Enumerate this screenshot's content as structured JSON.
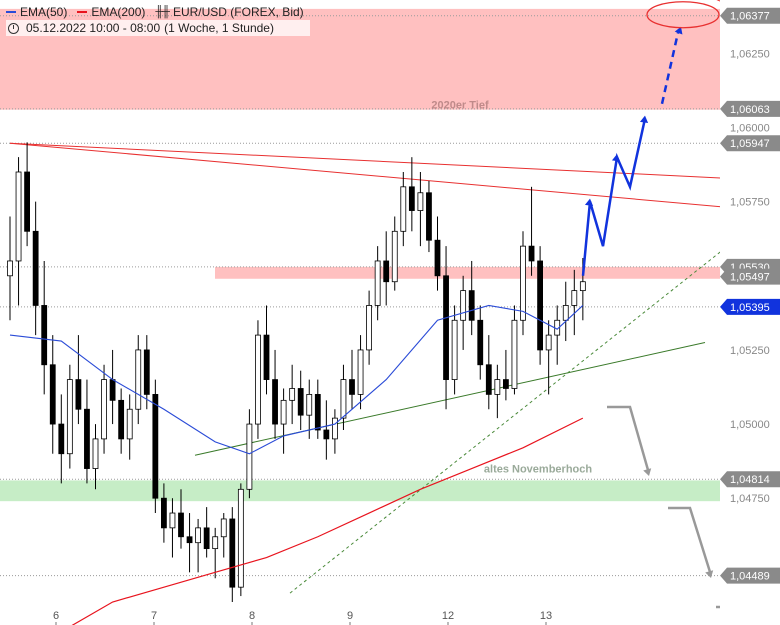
{
  "legend": {
    "ema50_label": "EMA(50)",
    "ema200_label": "EMA(200)",
    "instrument": "EUR/USD (FOREX, Bid)",
    "timerange": "05.12.2022 10:00 - 08:00",
    "period": "(1 Woche, 1 Stunde)"
  },
  "colors": {
    "ema50": "#2a4bd7",
    "ema200": "#e8141e",
    "resistance_zone": "#ffc0c0",
    "support_zone": "#c6edc6",
    "arrow_blue": "#1133dd",
    "arrow_gray": "#999999",
    "trend_red": "#e83030",
    "trend_green": "#3a7a2a",
    "trend_green_dashed": "#4a8a3a"
  },
  "chart_data": {
    "type": "candlestick",
    "x_ticks": [
      "6",
      "7",
      "8",
      "9",
      "12",
      "13"
    ],
    "ylim": [
      1.044,
      1.0643
    ],
    "price_ticks": [
      "1,06250",
      "1,06000",
      "1,05750",
      "1,05250",
      "1,05000",
      "1,04750"
    ],
    "highlighted_levels": [
      {
        "label": "1,06377",
        "value": 1.06377,
        "style": "gray"
      },
      {
        "label": "1,06063",
        "value": 1.06063,
        "style": "gray"
      },
      {
        "label": "1,05947",
        "value": 1.05947,
        "style": "gray"
      },
      {
        "label": "1,05530",
        "value": 1.0553,
        "style": "gray"
      },
      {
        "label": "1,05497",
        "value": 1.05497,
        "style": "gray-hidden"
      },
      {
        "label": "1,05395",
        "value": 1.05395,
        "style": "blue"
      },
      {
        "label": "1,04814",
        "value": 1.04814,
        "style": "gray"
      },
      {
        "label": "1,04489",
        "value": 1.04489,
        "style": "gray"
      }
    ],
    "zones": [
      {
        "name": "2020er Tief",
        "from": 1.0606,
        "to": 1.064,
        "color": "#ffc0c0"
      },
      {
        "name": "",
        "from": 1.0549,
        "to": 1.0553,
        "color": "#ffc0c0"
      },
      {
        "name": "altes Novemberhoch",
        "from": 1.0474,
        "to": 1.0481,
        "color": "#c6edc6"
      }
    ],
    "candles_ohlc": [
      [
        1.055,
        1.057,
        1.0535,
        1.0555
      ],
      [
        1.0555,
        1.059,
        1.054,
        1.0585
      ],
      [
        1.0585,
        1.0595,
        1.056,
        1.0565
      ],
      [
        1.0565,
        1.0575,
        1.053,
        1.054
      ],
      [
        1.054,
        1.0555,
        1.051,
        1.052
      ],
      [
        1.052,
        1.053,
        1.049,
        1.05
      ],
      [
        1.05,
        1.051,
        1.048,
        1.049
      ],
      [
        1.049,
        1.052,
        1.0485,
        1.0515
      ],
      [
        1.0515,
        1.053,
        1.05,
        1.0505
      ],
      [
        1.0505,
        1.0515,
        1.048,
        1.0485
      ],
      [
        1.0485,
        1.05,
        1.0478,
        1.0495
      ],
      [
        1.0495,
        1.052,
        1.049,
        1.0515
      ],
      [
        1.0515,
        1.0525,
        1.05,
        1.0508
      ],
      [
        1.0508,
        1.0512,
        1.049,
        1.0495
      ],
      [
        1.0495,
        1.051,
        1.0488,
        1.0505
      ],
      [
        1.0505,
        1.053,
        1.05,
        1.0525
      ],
      [
        1.0525,
        1.053,
        1.0505,
        1.051
      ],
      [
        1.051,
        1.0515,
        1.047,
        1.0475
      ],
      [
        1.0475,
        1.048,
        1.046,
        1.0465
      ],
      [
        1.0465,
        1.0475,
        1.0455,
        1.047
      ],
      [
        1.047,
        1.0478,
        1.0458,
        1.0462
      ],
      [
        1.0462,
        1.047,
        1.045,
        1.046
      ],
      [
        1.046,
        1.0468,
        1.045,
        1.0465
      ],
      [
        1.0465,
        1.0472,
        1.0455,
        1.0458
      ],
      [
        1.0458,
        1.0465,
        1.0448,
        1.0462
      ],
      [
        1.0462,
        1.047,
        1.0455,
        1.0468
      ],
      [
        1.0468,
        1.0472,
        1.044,
        1.0445
      ],
      [
        1.0445,
        1.048,
        1.0442,
        1.0478
      ],
      [
        1.0478,
        1.0505,
        1.0475,
        1.05
      ],
      [
        1.05,
        1.0535,
        1.0495,
        1.053
      ],
      [
        1.053,
        1.054,
        1.051,
        1.0515
      ],
      [
        1.0515,
        1.0525,
        1.0495,
        1.05
      ],
      [
        1.05,
        1.0512,
        1.049,
        1.0508
      ],
      [
        1.0508,
        1.052,
        1.05,
        1.0512
      ],
      [
        1.0512,
        1.0518,
        1.0498,
        1.0503
      ],
      [
        1.0503,
        1.0515,
        1.0495,
        1.051
      ],
      [
        1.051,
        1.0515,
        1.0495,
        1.0498
      ],
      [
        1.0498,
        1.0508,
        1.0488,
        1.0495
      ],
      [
        1.0495,
        1.0505,
        1.049,
        1.0502
      ],
      [
        1.0502,
        1.052,
        1.0498,
        1.0515
      ],
      [
        1.0515,
        1.0525,
        1.0505,
        1.051
      ],
      [
        1.051,
        1.053,
        1.0505,
        1.0525
      ],
      [
        1.0525,
        1.0545,
        1.052,
        1.054
      ],
      [
        1.054,
        1.056,
        1.0535,
        1.0555
      ],
      [
        1.0555,
        1.0565,
        1.054,
        1.0548
      ],
      [
        1.0548,
        1.057,
        1.0545,
        1.0565
      ],
      [
        1.0565,
        1.0585,
        1.056,
        1.058
      ],
      [
        1.058,
        1.059,
        1.0565,
        1.0572
      ],
      [
        1.0572,
        1.0585,
        1.056,
        1.0578
      ],
      [
        1.0578,
        1.0582,
        1.0558,
        1.0562
      ],
      [
        1.0562,
        1.057,
        1.0545,
        1.055
      ],
      [
        1.055,
        1.056,
        1.0505,
        1.0515
      ],
      [
        1.0515,
        1.054,
        1.051,
        1.0535
      ],
      [
        1.0535,
        1.055,
        1.0525,
        1.0545
      ],
      [
        1.0545,
        1.0555,
        1.053,
        1.0535
      ],
      [
        1.0535,
        1.054,
        1.0515,
        1.052
      ],
      [
        1.052,
        1.053,
        1.0505,
        1.051
      ],
      [
        1.051,
        1.052,
        1.0502,
        1.0515
      ],
      [
        1.0515,
        1.0525,
        1.0508,
        1.0512
      ],
      [
        1.0512,
        1.054,
        1.051,
        1.0535
      ],
      [
        1.0535,
        1.0565,
        1.053,
        1.056
      ],
      [
        1.056,
        1.058,
        1.055,
        1.0555
      ],
      [
        1.0555,
        1.056,
        1.052,
        1.0525
      ],
      [
        1.0525,
        1.0535,
        1.051,
        1.053
      ],
      [
        1.053,
        1.054,
        1.052,
        1.0535
      ],
      [
        1.0535,
        1.0548,
        1.0528,
        1.054
      ],
      [
        1.054,
        1.0552,
        1.053,
        1.0545
      ],
      [
        1.0545,
        1.0556,
        1.0535,
        1.0548
      ]
    ],
    "ema50": [
      [
        0,
        1.053
      ],
      [
        6,
        1.0528
      ],
      [
        12,
        1.0515
      ],
      [
        18,
        1.0505
      ],
      [
        24,
        1.0494
      ],
      [
        28,
        1.049
      ],
      [
        32,
        1.0496
      ],
      [
        38,
        1.05
      ],
      [
        44,
        1.0515
      ],
      [
        50,
        1.0535
      ],
      [
        56,
        1.054
      ],
      [
        60,
        1.0538
      ],
      [
        64,
        1.0532
      ],
      [
        67,
        1.054
      ]
    ],
    "ema200": [
      [
        6,
        1.043
      ],
      [
        12,
        1.044
      ],
      [
        18,
        1.0445
      ],
      [
        24,
        1.045
      ],
      [
        30,
        1.0455
      ],
      [
        36,
        1.0462
      ],
      [
        42,
        1.047
      ],
      [
        48,
        1.0478
      ],
      [
        54,
        1.0485
      ],
      [
        60,
        1.0492
      ],
      [
        67,
        1.0502
      ]
    ],
    "annotations": {
      "resistance_label": "2020er Tief",
      "support_label": "altes Novemberhoch"
    }
  }
}
